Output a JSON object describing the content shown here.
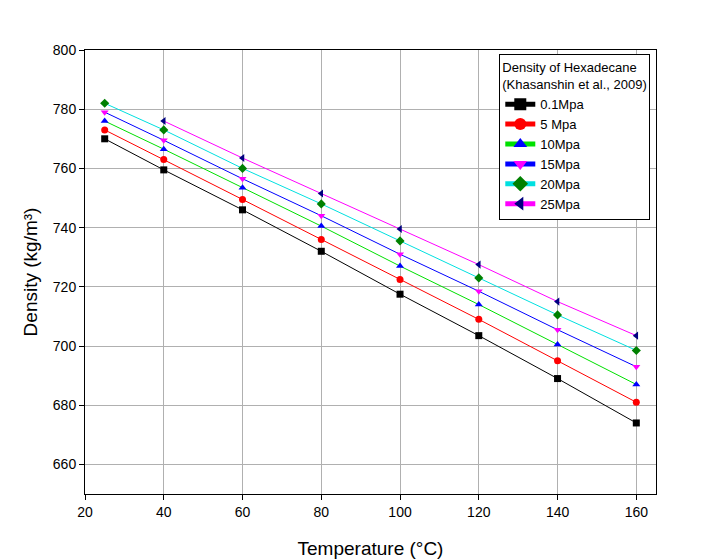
{
  "chart_data": {
    "type": "line",
    "x_label": "Temperature (°C)",
    "y_label": "Density (kg/m³)",
    "legend_title": [
      "Density of Hexadecane",
      "(Khasanshin et al., 2009)"
    ],
    "legend": "top right",
    "grid": true,
    "xlim": [
      20,
      165
    ],
    "xticks": [
      20,
      40,
      60,
      80,
      100,
      120,
      140,
      160
    ],
    "ylim": [
      650,
      800
    ],
    "yticks": [
      660,
      680,
      700,
      720,
      740,
      760,
      780,
      800
    ],
    "x": [
      25,
      40,
      60,
      80,
      100,
      120,
      140,
      160
    ],
    "series": [
      {
        "name": "0.1Mpa",
        "color": "#000000",
        "marker": "square",
        "colors": [
          "#000000",
          "#000000",
          "#000000",
          "#000000",
          "#000000",
          "#000000",
          "#000000",
          "#000000"
        ],
        "values": [
          770,
          759.5,
          746,
          732,
          717.5,
          703.5,
          689,
          674
        ]
      },
      {
        "name": "5 Mpa",
        "color": "#ff0000",
        "marker": "circle",
        "colors": [
          "#ff0000",
          "#ff0000",
          "#ff0000",
          "#ff0000",
          "#ff0000",
          "#ff0000",
          "#ff0000",
          "#ff0000"
        ],
        "values": [
          773,
          763,
          749.5,
          736,
          722.5,
          709,
          695,
          681
        ]
      },
      {
        "name": "10Mpa",
        "color": "#00e000",
        "marker": "triangle-up",
        "colors": [
          "#0000ff",
          "#0000ff",
          "#0000ff",
          "#0000ff",
          "#0000ff",
          "#0000ff",
          "#0000ff",
          "#0000ff"
        ],
        "values": [
          776,
          766.5,
          753.5,
          740.5,
          727,
          714,
          700.5,
          687
        ]
      },
      {
        "name": "15Mpa",
        "color": "#0000ff",
        "marker": "triangle-down",
        "colors": [
          "#ff00ff",
          "#ff00ff",
          "#ff00ff",
          "#ff00ff",
          "#ff00ff",
          "#ff00ff",
          "#ff00ff",
          "#ff00ff"
        ],
        "values": [
          779,
          769.5,
          756.5,
          744,
          731,
          718.5,
          705.5,
          693
        ]
      },
      {
        "name": "20Mpa",
        "color": "#00e0e0",
        "marker": "diamond",
        "colors": [
          "#008000",
          "#008000",
          "#008000",
          "#008000",
          "#008000",
          "#008000",
          "#008000",
          "#008000"
        ],
        "values": [
          782,
          773,
          760,
          748,
          735.5,
          723,
          710.5,
          698.5
        ]
      },
      {
        "name": "25Mpa",
        "color": "#ff00ff",
        "marker": "triangle-left",
        "colors": [
          "#000080",
          "#000080",
          "#000080",
          "#000080",
          "#000080",
          "#000080",
          "#000080",
          "#000080"
        ],
        "values": [
          null,
          776,
          763.5,
          751.5,
          739.5,
          727.5,
          715,
          703.5
        ]
      }
    ]
  }
}
